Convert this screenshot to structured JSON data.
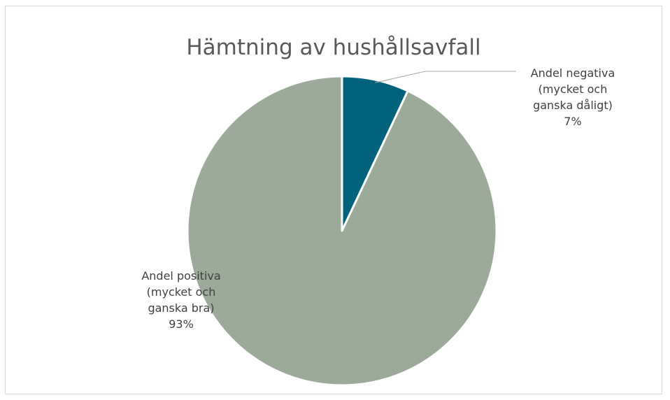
{
  "chart_data": {
    "type": "pie",
    "title": "Hämtning av hushållsavfall",
    "slices": [
      {
        "label_lines": [
          "Andel negativa",
          "(mycket och",
          "ganska dåligt)"
        ],
        "percent_label": "7%",
        "value": 7,
        "color": "#00627b"
      },
      {
        "label_lines": [
          "Andel positiva",
          "(mycket och",
          "ganska bra)"
        ],
        "percent_label": "93%",
        "value": 93,
        "color": "#9caa9a"
      }
    ],
    "start_angle_deg": 0,
    "direction": "clockwise",
    "legend": "none",
    "label_placement": "outside-with-leader-line"
  }
}
